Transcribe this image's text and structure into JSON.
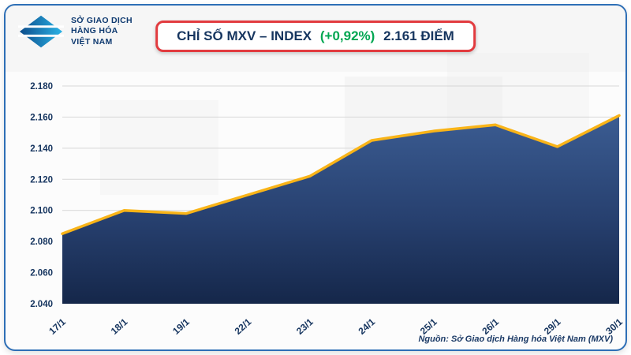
{
  "header": {
    "logo_lines": [
      "SỞ GIAO DỊCH",
      "HÀNG HÓA",
      "VIỆT NAM"
    ],
    "title_main": "CHỈ SỐ MXV – INDEX",
    "title_change": "(+0,92%)",
    "title_value": "2.161 ĐIỂM"
  },
  "footer": {
    "source": "Nguồn: Sở Giao dịch Hàng hóa Việt Nam (MXV)"
  },
  "chart_data": {
    "type": "area",
    "title": "CHỈ SỐ MXV – INDEX (+0,92%) 2.161 ĐIỂM",
    "categories": [
      "17/1",
      "18/1",
      "19/1",
      "22/1",
      "23/1",
      "24/1",
      "25/1",
      "26/1",
      "29/1",
      "30/1"
    ],
    "values": [
      2085,
      2100,
      2098,
      2110,
      2122,
      2145,
      2151,
      2155,
      2141,
      2161
    ],
    "unit": "điểm",
    "xlabel": "",
    "ylabel": "",
    "ylim": [
      2040,
      2180
    ],
    "grid": true,
    "legend": false,
    "yticks": [
      {
        "label": "2.180",
        "value": 2180
      },
      {
        "label": "2.160",
        "value": 2160
      },
      {
        "label": "2.140",
        "value": 2140
      },
      {
        "label": "2.120",
        "value": 2120
      },
      {
        "label": "2.100",
        "value": 2100
      },
      {
        "label": "2.080",
        "value": 2080
      },
      {
        "label": "2.060",
        "value": 2060
      },
      {
        "label": "2.040",
        "value": 2040
      }
    ],
    "colors": {
      "line": "#f9b418",
      "area_top": "#3b5c92",
      "area_mid": "#27406f",
      "area_bottom": "#15274a",
      "gridline": "#d7d7d7",
      "tick_text": "#16355f"
    }
  },
  "colors": {
    "card_border": "#2e6fb6",
    "title_border": "#e23b3f",
    "title_text": "#16355f",
    "change_green": "#00a651",
    "logo_navy": "#0f3a70",
    "logo_teal": "#2ab3e6"
  }
}
